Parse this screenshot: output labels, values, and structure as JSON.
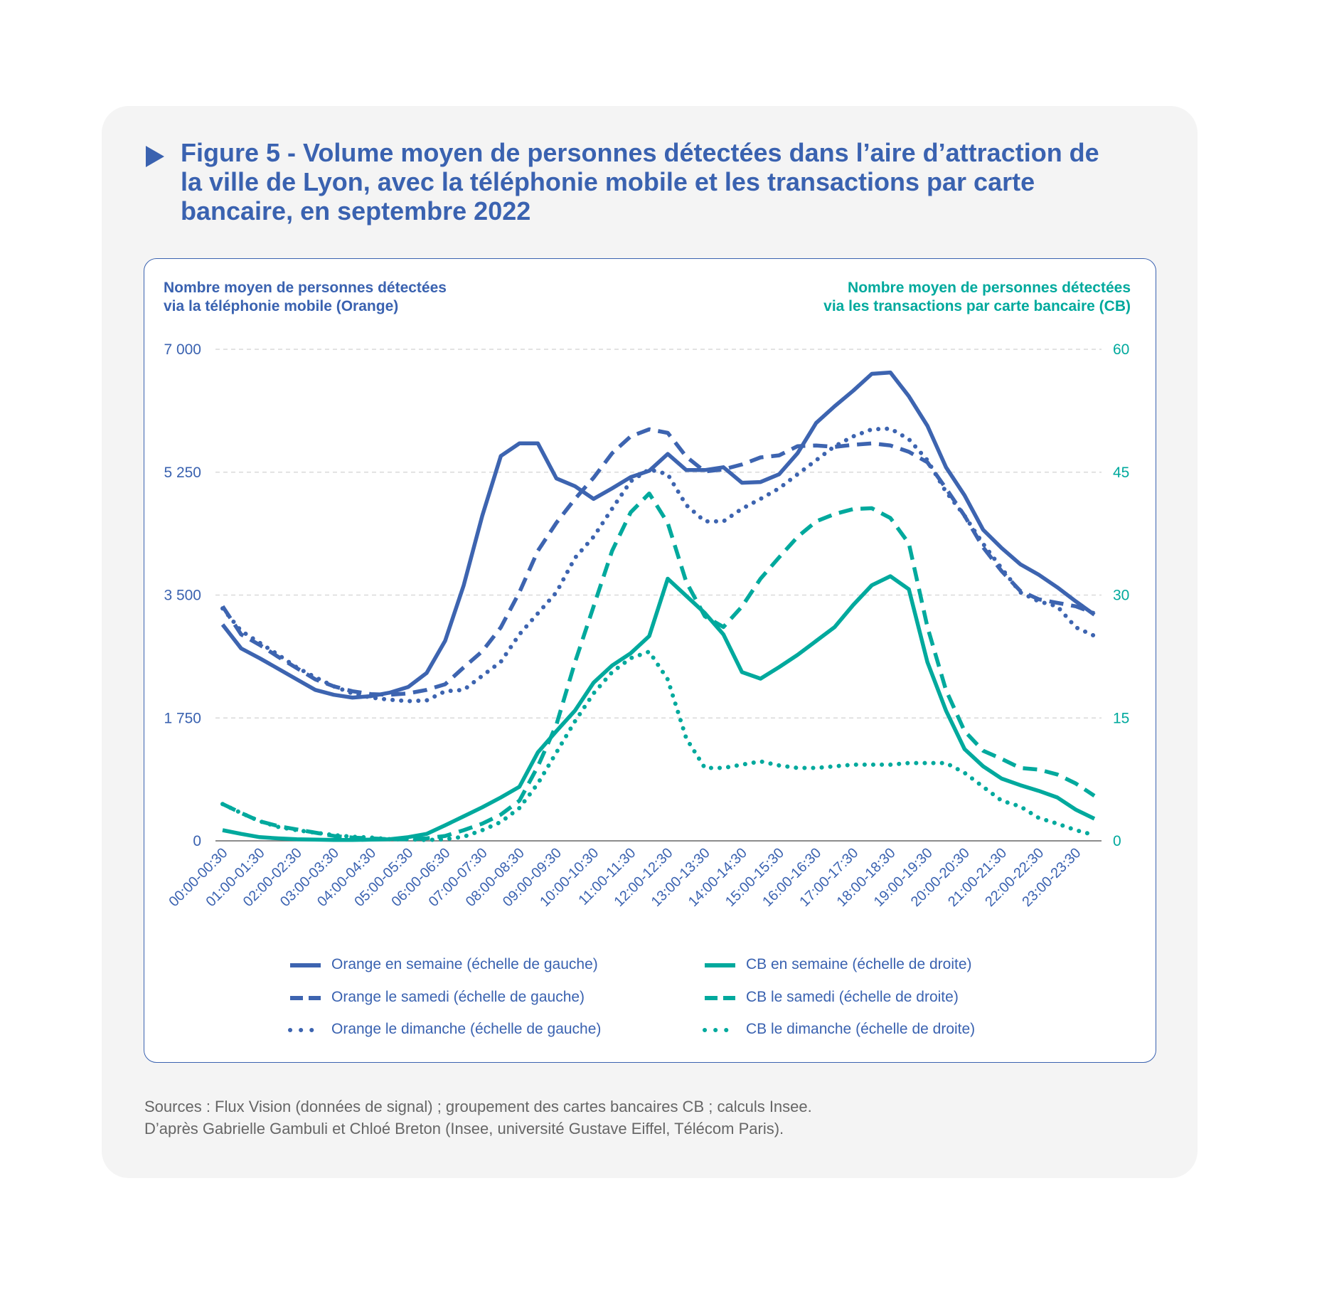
{
  "title": "Figure 5 - Volume moyen de personnes détectées dans l’aire d’attraction de la ville de Lyon, avec la téléphonie mobile et les transactions par carte bancaire, en septembre 2022",
  "sources": [
    "Sources : Flux Vision (données de signal) ; groupement des cartes bancaires CB ; calculs Insee.",
    "D’après Gabrielle Gambuli et Chloé Breton (Insee, université Gustave Eiffel, Télécom Paris)."
  ],
  "colors": {
    "orange": "#3d64b0",
    "cb": "#00a99d",
    "grid": "#d9d9d9",
    "axis": "#666666"
  },
  "chart_data": {
    "type": "line",
    "title": "Figure 5 - Volume moyen de personnes détectées dans l’aire d’attraction de la ville de Lyon, avec la téléphonie mobile et les transactions par carte bancaire, en septembre 2022",
    "ylabel_left": [
      "Nombre moyen de personnes détectées",
      "via la téléphonie mobile (Orange)"
    ],
    "ylabel_right": [
      "Nombre moyen de personnes détectées",
      "via les transactions par carte bancaire (CB)"
    ],
    "ylim_left": [
      0,
      7000
    ],
    "ylim_right": [
      0,
      60
    ],
    "yticks_left": [
      {
        "v": 0,
        "label": "0"
      },
      {
        "v": 1750,
        "label": "1 750"
      },
      {
        "v": 3500,
        "label": "3 500"
      },
      {
        "v": 5250,
        "label": "5 250"
      },
      {
        "v": 7000,
        "label": "7 000"
      }
    ],
    "yticks_right": [
      {
        "v": 0,
        "label": "0"
      },
      {
        "v": 15,
        "label": "15"
      },
      {
        "v": 30,
        "label": "30"
      },
      {
        "v": 45,
        "label": "45"
      },
      {
        "v": 60,
        "label": "60"
      }
    ],
    "grid": true,
    "legend_position": "bottom",
    "x": [
      "00:00-00:30",
      "00:30-01:00",
      "01:00-01:30",
      "01:30-02:00",
      "02:00-02:30",
      "02:30-03:00",
      "03:00-03:30",
      "03:30-04:00",
      "04:00-04:30",
      "04:30-05:00",
      "05:00-05:30",
      "05:30-06:00",
      "06:00-06:30",
      "06:30-07:00",
      "07:00-07:30",
      "07:30-08:00",
      "08:00-08:30",
      "08:30-09:00",
      "09:00-09:30",
      "09:30-10:00",
      "10:00-10:30",
      "10:30-11:00",
      "11:00-11:30",
      "11:30-12:00",
      "12:00-12:30",
      "12:30-13:00",
      "13:00-13:30",
      "13:30-14:00",
      "14:00-14:30",
      "14:30-15:00",
      "15:00-15:30",
      "15:30-16:00",
      "16:00-16:30",
      "16:30-17:00",
      "17:00-17:30",
      "17:30-18:00",
      "18:00-18:30",
      "18:30-19:00",
      "19:00-19:30",
      "19:30-20:00",
      "20:00-20:30",
      "20:30-21:00",
      "21:00-21:30",
      "21:30-22:00",
      "22:00-22:30",
      "22:30-23:00",
      "23:00-23:30",
      "23:30-00:00"
    ],
    "tick_labels": [
      "00:00-00:30",
      "01:00-01:30",
      "02:00-02:30",
      "03:00-03:30",
      "04:00-04:30",
      "05:00-05:30",
      "06:00-06:30",
      "07:00-07:30",
      "08:00-08:30",
      "09:00-09:30",
      "10:00-10:30",
      "11:00-11:30",
      "12:00-12:30",
      "13:00-13:30",
      "14:00-14:30",
      "15:00-15:30",
      "16:00-16:30",
      "17:00-17:30",
      "18:00-18:30",
      "19:00-19:30",
      "20:00-20:30",
      "21:00-21:30",
      "22:00-22:30",
      "23:00-23:30"
    ],
    "series": [
      {
        "name": "Orange en semaine (échelle de gauche)",
        "axis": "left",
        "style": "solid",
        "color": "#3d64b0",
        "values": [
          3080,
          2740,
          2600,
          2450,
          2300,
          2150,
          2080,
          2040,
          2060,
          2110,
          2190,
          2390,
          2850,
          3640,
          4630,
          5480,
          5660,
          5660,
          5160,
          5050,
          4870,
          5020,
          5180,
          5270,
          5510,
          5280,
          5280,
          5320,
          5100,
          5110,
          5220,
          5520,
          5950,
          6190,
          6410,
          6650,
          6670,
          6330,
          5910,
          5320,
          4920,
          4430,
          4170,
          3940,
          3790,
          3610,
          3410,
          3220
        ]
      },
      {
        "name": "Orange le samedi (échelle de gauche)",
        "axis": "left",
        "style": "dashed",
        "color": "#3d64b0",
        "values": [
          3340,
          2940,
          2790,
          2620,
          2460,
          2300,
          2200,
          2130,
          2090,
          2080,
          2100,
          2150,
          2230,
          2470,
          2700,
          3040,
          3540,
          4130,
          4530,
          4870,
          5170,
          5520,
          5760,
          5860,
          5810,
          5470,
          5260,
          5290,
          5360,
          5460,
          5490,
          5620,
          5630,
          5610,
          5640,
          5660,
          5630,
          5540,
          5390,
          5020,
          4630,
          4180,
          3840,
          3560,
          3440,
          3390,
          3340,
          3240
        ]
      },
      {
        "name": "Orange le dimanche (échelle de gauche)",
        "axis": "left",
        "style": "dotted",
        "color": "#3d64b0",
        "values": [
          3310,
          2990,
          2820,
          2650,
          2470,
          2330,
          2200,
          2100,
          2040,
          2010,
          1990,
          2000,
          2130,
          2150,
          2350,
          2550,
          2940,
          3240,
          3540,
          4030,
          4330,
          4730,
          5120,
          5290,
          5220,
          4780,
          4550,
          4550,
          4730,
          4870,
          5020,
          5220,
          5420,
          5620,
          5760,
          5860,
          5870,
          5720,
          5420,
          4970,
          4630,
          4230,
          3880,
          3540,
          3410,
          3340,
          3040,
          2920
        ]
      },
      {
        "name": "CB en semaine (échelle de droite)",
        "axis": "right",
        "style": "solid",
        "color": "#00a99d",
        "values": [
          1.3,
          0.85,
          0.45,
          0.3,
          0.2,
          0.15,
          0.1,
          0.1,
          0.15,
          0.2,
          0.45,
          0.85,
          1.9,
          3.0,
          4.1,
          5.3,
          6.6,
          10.8,
          13.4,
          15.9,
          19.3,
          21.4,
          22.9,
          25.0,
          32.0,
          29.9,
          27.8,
          25.2,
          20.6,
          19.8,
          21.2,
          22.7,
          24.4,
          26.1,
          28.8,
          31.2,
          32.3,
          30.7,
          21.8,
          15.9,
          11.2,
          9.1,
          7.6,
          6.8,
          6.1,
          5.3,
          3.8,
          2.7
        ]
      },
      {
        "name": "CB le samedi (échelle de droite)",
        "axis": "right",
        "style": "dashed",
        "color": "#00a99d",
        "values": [
          4.5,
          3.4,
          2.4,
          1.8,
          1.4,
          1.0,
          0.6,
          0.4,
          0.3,
          0.2,
          0.2,
          0.3,
          0.6,
          1.3,
          2.1,
          3.2,
          4.9,
          9.1,
          14.2,
          21.8,
          28.6,
          35.4,
          40.1,
          42.4,
          38.8,
          31.6,
          27.4,
          26.1,
          28.6,
          32.0,
          34.6,
          37.1,
          39.0,
          39.9,
          40.5,
          40.6,
          39.4,
          36.3,
          26.1,
          18.4,
          13.4,
          11.0,
          10.0,
          8.9,
          8.7,
          8.1,
          7.0,
          5.5
        ]
      },
      {
        "name": "CB le dimanche (échelle de droite)",
        "axis": "right",
        "style": "dotted",
        "color": "#00a99d",
        "values": [
          4.5,
          3.4,
          2.4,
          1.7,
          1.3,
          1.0,
          0.7,
          0.5,
          0.4,
          0.2,
          0.2,
          0.1,
          0.2,
          0.5,
          1.3,
          2.3,
          4.0,
          7.0,
          10.8,
          14.6,
          18.0,
          20.6,
          22.3,
          23.1,
          19.7,
          12.5,
          8.9,
          8.9,
          9.3,
          9.7,
          9.2,
          8.9,
          8.9,
          9.1,
          9.3,
          9.3,
          9.3,
          9.5,
          9.5,
          9.5,
          8.3,
          6.6,
          4.9,
          4.2,
          2.8,
          2.1,
          1.3,
          0.7
        ]
      }
    ]
  }
}
